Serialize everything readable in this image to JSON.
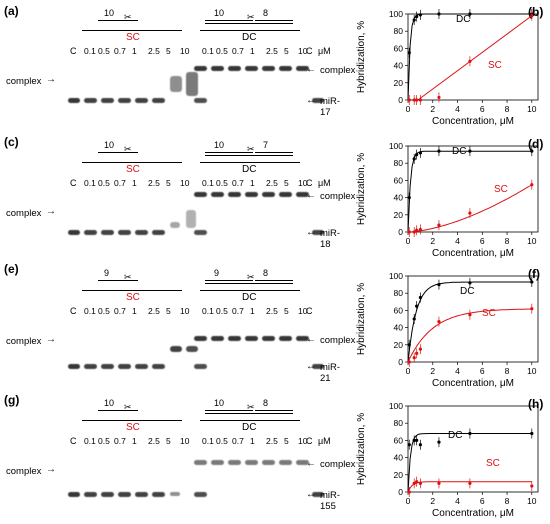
{
  "panels": {
    "a": {
      "label": "(a)",
      "sc_label": "SC",
      "dc_label": "DC",
      "sc_len": "10",
      "dc_len_left": "10",
      "dc_len_right": "8",
      "target": "miR-17",
      "complex": "complex",
      "unit": "μM",
      "c": "C"
    },
    "c": {
      "label": "(c)",
      "sc_label": "SC",
      "dc_label": "DC",
      "sc_len": "10",
      "dc_len_left": "10",
      "dc_len_right": "7",
      "target": "miR-18",
      "complex": "complex",
      "unit": "μM",
      "c": "C"
    },
    "e": {
      "label": "(e)",
      "sc_label": "SC",
      "dc_label": "DC",
      "sc_len": "9",
      "dc_len_left": "9",
      "dc_len_right": "8",
      "target": "miR-21",
      "complex": "complex",
      "unit": "",
      "c": "C"
    },
    "g": {
      "label": "(g)",
      "sc_label": "SC",
      "dc_label": "DC",
      "sc_len": "10",
      "dc_len_left": "10",
      "dc_len_right": "8",
      "target": "miR-155",
      "complex": "complex",
      "unit": "μM",
      "c": "C"
    }
  },
  "lanes": [
    "0.1",
    "0.5",
    "0.7",
    "1",
    "2.5",
    "5",
    "10"
  ],
  "charts": [
    {
      "label": "(b)",
      "ylabel": "Hybridization, %",
      "xlabel": "Concentration, μM",
      "dc": "DC",
      "sc": "SC"
    },
    {
      "label": "(d)",
      "ylabel": "Hybridization, %",
      "xlabel": "Concentration, μM",
      "dc": "DC",
      "sc": "SC"
    },
    {
      "label": "(f)",
      "ylabel": "Hybridization, %",
      "xlabel": "Concentration, μM",
      "dc": "DC",
      "sc": "SC"
    },
    {
      "label": "(h)",
      "ylabel": "Hybridization, %",
      "xlabel": "Concentration, μM",
      "dc": "DC",
      "sc": "SC"
    }
  ],
  "chart_data": [
    {
      "type": "line",
      "x": [
        0.1,
        0.5,
        0.7,
        1,
        2.5,
        5,
        10
      ],
      "series": [
        {
          "name": "DC",
          "values": [
            55,
            93,
            97,
            99,
            100,
            100,
            100
          ]
        },
        {
          "name": "SC",
          "values": [
            0,
            0,
            0,
            0,
            3,
            45,
            98
          ]
        }
      ],
      "xlim": [
        0,
        10.5
      ],
      "ylim": [
        0,
        100
      ],
      "xticks": [
        0,
        2,
        4,
        6,
        8,
        10
      ],
      "yticks": [
        0,
        20,
        40,
        60,
        80,
        100
      ]
    },
    {
      "type": "line",
      "x": [
        0.1,
        0.5,
        0.7,
        1,
        2.5,
        5,
        10
      ],
      "series": [
        {
          "name": "DC",
          "values": [
            40,
            85,
            90,
            92,
            94,
            94,
            94
          ]
        },
        {
          "name": "SC",
          "values": [
            0,
            0,
            2,
            3,
            8,
            22,
            55
          ]
        }
      ],
      "xlim": [
        0,
        10.5
      ],
      "ylim": [
        0,
        100
      ],
      "xticks": [
        0,
        2,
        4,
        6,
        8,
        10
      ],
      "yticks": [
        0,
        20,
        40,
        60,
        80,
        100
      ]
    },
    {
      "type": "line",
      "x": [
        0.1,
        0.5,
        0.7,
        1,
        2.5,
        5,
        10
      ],
      "series": [
        {
          "name": "DC",
          "values": [
            20,
            50,
            65,
            75,
            90,
            92,
            93
          ]
        },
        {
          "name": "SC",
          "values": [
            0,
            5,
            10,
            15,
            47,
            55,
            62
          ]
        }
      ],
      "xlim": [
        0,
        10.5
      ],
      "ylim": [
        0,
        100
      ],
      "xticks": [
        0,
        2,
        4,
        6,
        8,
        10
      ],
      "yticks": [
        0,
        20,
        40,
        60,
        80,
        100
      ]
    },
    {
      "type": "line",
      "x": [
        0.1,
        0.5,
        0.7,
        1,
        2.5,
        5,
        10
      ],
      "series": [
        {
          "name": "DC",
          "values": [
            55,
            60,
            60,
            55,
            58,
            68,
            68
          ]
        },
        {
          "name": "SC",
          "values": [
            0,
            10,
            12,
            10,
            10,
            10,
            7
          ]
        }
      ],
      "xlim": [
        0,
        10.5
      ],
      "ylim": [
        0,
        100
      ],
      "xticks": [
        0,
        2,
        4,
        6,
        8,
        10
      ],
      "yticks": [
        0,
        20,
        40,
        60,
        80,
        100
      ]
    }
  ]
}
